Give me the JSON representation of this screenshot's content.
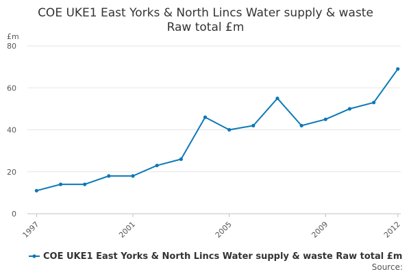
{
  "chart_data": {
    "type": "line",
    "title": "COE UKE1 East Yorks & North Lincs Water supply & waste Raw total £m",
    "title_lines": [
      "COE UKE1 East Yorks & North Lincs Water supply & waste",
      "Raw total £m"
    ],
    "ylabel": "£m",
    "xlabel": "",
    "ylim": [
      0,
      80
    ],
    "yticks": [
      0,
      20,
      40,
      60,
      80
    ],
    "xticks": [
      1997,
      2001,
      2005,
      2009,
      2012
    ],
    "x": [
      1997,
      1998,
      1999,
      2000,
      2001,
      2002,
      2003,
      2004,
      2005,
      2006,
      2007,
      2008,
      2009,
      2010,
      2011,
      2012
    ],
    "series": [
      {
        "name": "COE UKE1 East Yorks & North Lincs Water supply & waste Raw total £m",
        "color": "#0b78b8",
        "values": [
          11,
          14,
          14,
          18,
          18,
          23,
          26,
          46,
          40,
          42,
          55,
          42,
          45,
          50,
          53,
          69
        ]
      }
    ],
    "grid": true,
    "legend": "bottom"
  },
  "footer": {
    "source_label": "Source:"
  }
}
